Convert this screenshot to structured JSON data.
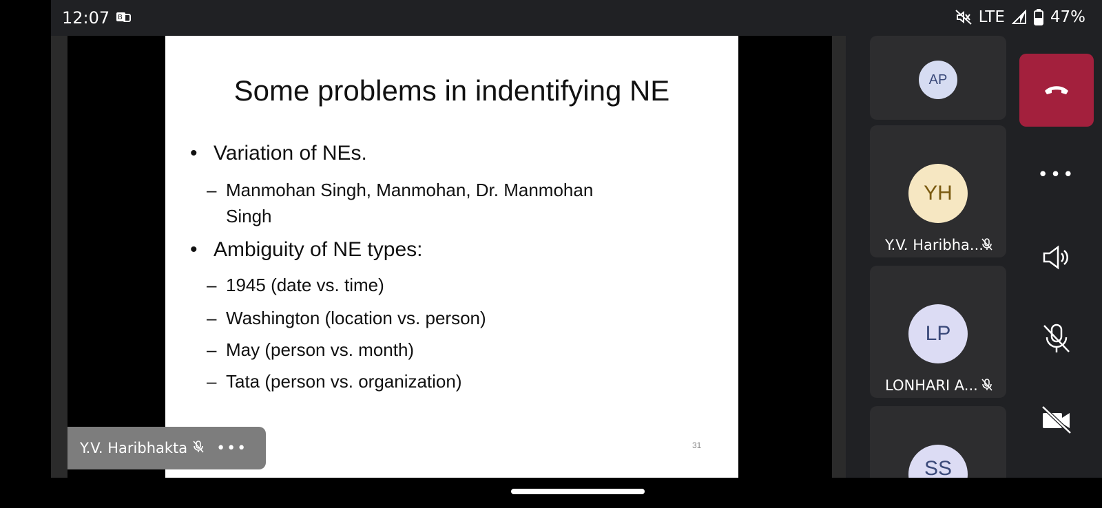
{
  "status_bar": {
    "time": "12:07",
    "network": "LTE",
    "battery": "47%"
  },
  "slide": {
    "title": "Some problems in indentifying NE",
    "bullets": [
      {
        "text": "Variation of NEs.",
        "subs": [
          "Manmohan Singh,  Manmohan, Dr. Manmohan",
          "Singh"
        ]
      },
      {
        "text": "Ambiguity of NE types:",
        "subs": [
          "1945 (date vs. time)",
          "Washington (location vs. person)",
          "May (person vs. month)",
          "Tata (person vs. organization)"
        ]
      }
    ],
    "page_number": "31"
  },
  "presenter": {
    "name": "Y.V. Haribhakta",
    "more": "•••"
  },
  "participants": [
    {
      "initials": "AP",
      "name": "",
      "avatar_bg": "#d6dcf2",
      "avatar_color": "#3b4a7a"
    },
    {
      "initials": "YH",
      "name": "Y.V. Haribha...",
      "avatar_bg": "#f6e7c2",
      "avatar_color": "#7a5a10"
    },
    {
      "initials": "LP",
      "name": "LONHARI A...",
      "avatar_bg": "#dcdcf4",
      "avatar_color": "#3b4a7a"
    },
    {
      "initials": "SS",
      "name": "",
      "avatar_bg": "#dcdcf4",
      "avatar_color": "#3b4a7a"
    }
  ],
  "controls": {
    "more": "•••"
  }
}
